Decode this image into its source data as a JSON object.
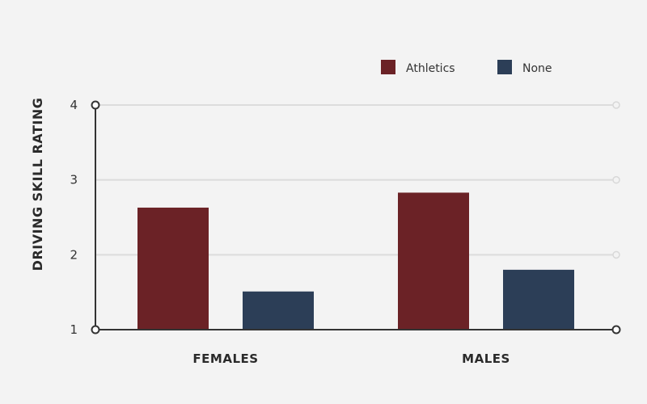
{
  "chart_data": {
    "type": "bar",
    "categories": [
      "FEMALES",
      "MALES"
    ],
    "series": [
      {
        "name": "Athletics",
        "values": [
          2.63,
          2.83
        ],
        "color": "#6b2226"
      },
      {
        "name": "None",
        "values": [
          1.51,
          1.8
        ],
        "color": "#2c3e57"
      }
    ],
    "xlabel": "",
    "ylabel": "DRIVING SKILL RATING",
    "ylim": [
      1,
      4
    ],
    "yticks": [
      "1",
      "2",
      "3",
      "4"
    ],
    "grid": true,
    "legend_position": "top-right"
  }
}
